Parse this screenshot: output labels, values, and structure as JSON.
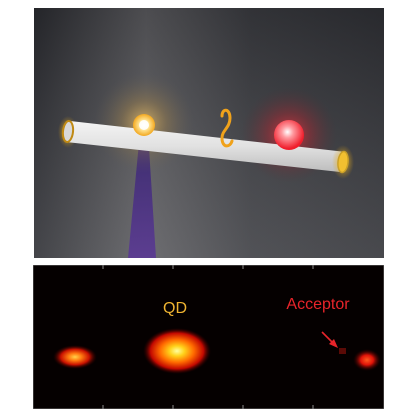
{
  "labels": {
    "qd": "QD",
    "acceptor": "Acceptor"
  },
  "colors": {
    "qd_label": "#f0b431",
    "acceptor_label": "#e8242a",
    "top_background_dark": "#2b2c31",
    "top_background_light": "#8a8a8d",
    "nanowire": "#e5e5e5",
    "nanowire_end_glow": "#f2b81d",
    "donor_emitter": "#ffd040",
    "acceptor_emitter": "#ff2030",
    "excitation_beam": "#4c2f82",
    "energy_transfer_wave": "#f0a21b",
    "bottom_background": "#050000"
  },
  "icons": {
    "donor": "yellow-glow-dot-icon",
    "acceptor": "red-glow-dot-icon",
    "wave": "energy-transfer-wave-icon",
    "arrow": "arrow-pointer-icon"
  }
}
